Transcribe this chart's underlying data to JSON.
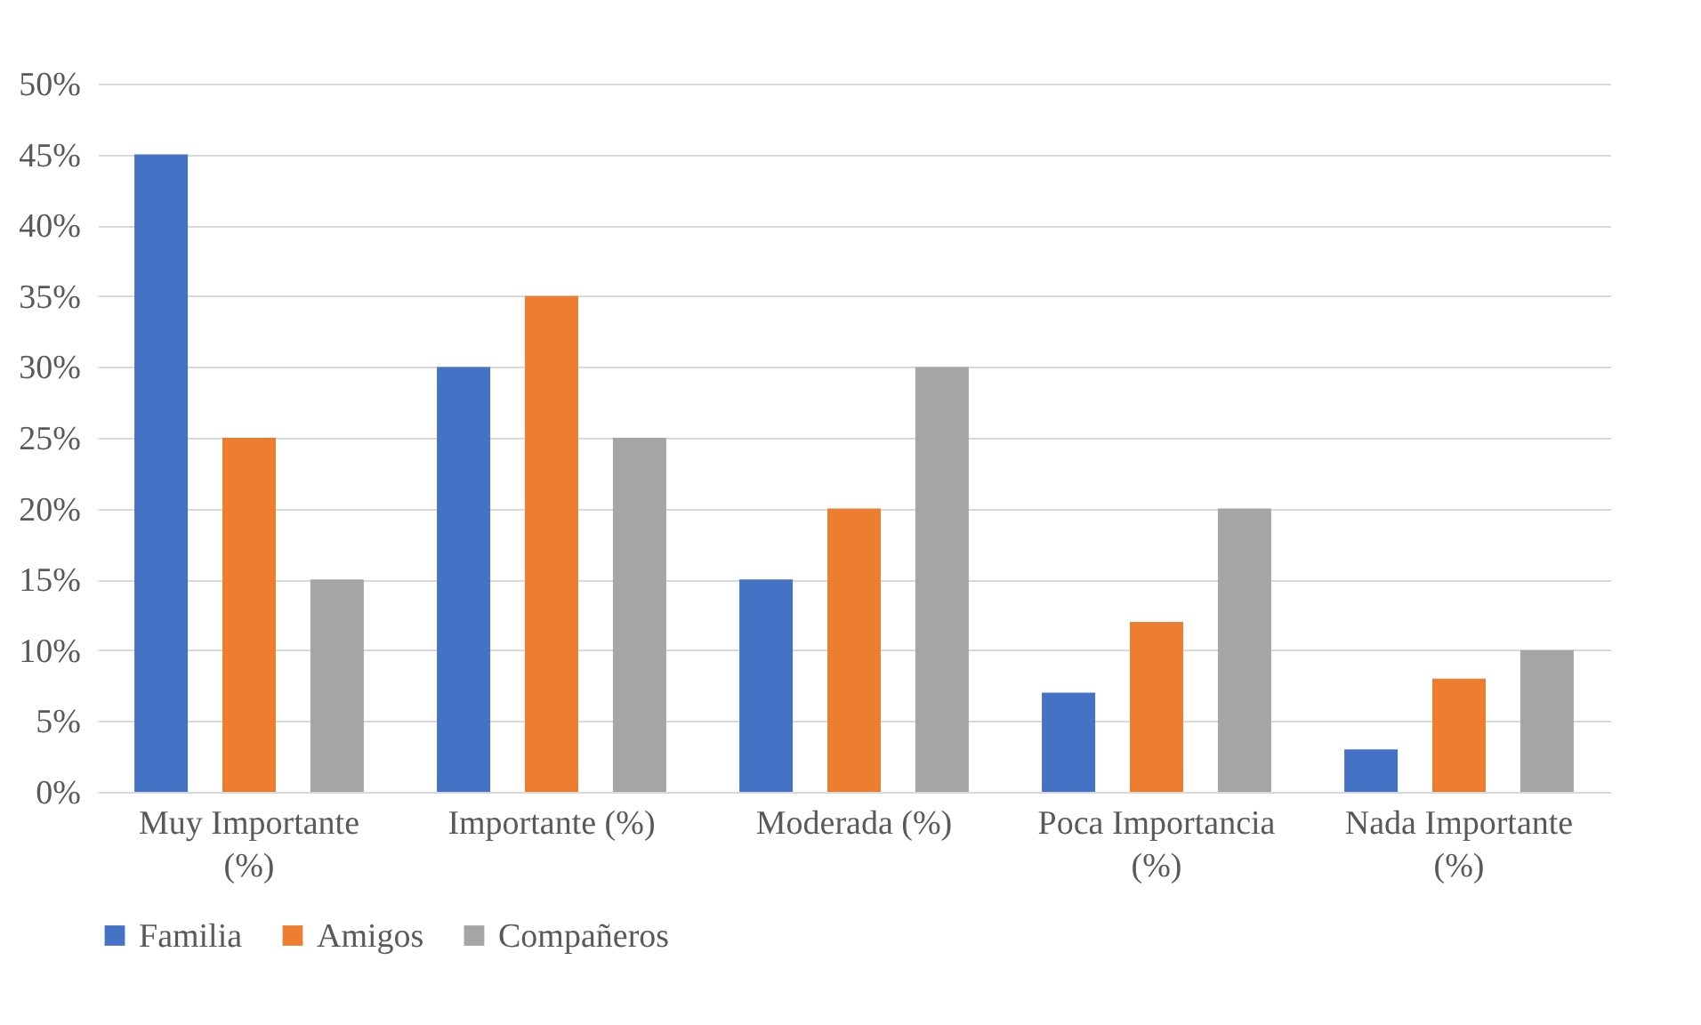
{
  "chart_data": {
    "type": "bar",
    "categories": [
      "Muy Importante (%)",
      "Importante (%)",
      "Moderada (%)",
      "Poca Importancia (%)",
      "Nada Importante (%)"
    ],
    "series": [
      {
        "name": "Familia",
        "color": "#4472c4",
        "values": [
          45,
          30,
          15,
          7,
          3
        ]
      },
      {
        "name": "Amigos",
        "color": "#ed7d31",
        "values": [
          25,
          35,
          20,
          12,
          8
        ]
      },
      {
        "name": "Compañeros",
        "color": "#a5a5a5",
        "values": [
          15,
          25,
          30,
          20,
          10
        ]
      }
    ],
    "ylim": [
      0,
      50
    ],
    "yticks": [
      {
        "value": 0,
        "label": "0%"
      },
      {
        "value": 5,
        "label": "5%"
      },
      {
        "value": 10,
        "label": "10%"
      },
      {
        "value": 15,
        "label": "15%"
      },
      {
        "value": 20,
        "label": "20%"
      },
      {
        "value": 25,
        "label": "25%"
      },
      {
        "value": 30,
        "label": "30%"
      },
      {
        "value": 35,
        "label": "35%"
      },
      {
        "value": 40,
        "label": "40%"
      },
      {
        "value": 45,
        "label": "45%"
      },
      {
        "value": 50,
        "label": "50%"
      }
    ],
    "grid": "y",
    "legend": "bottom"
  }
}
